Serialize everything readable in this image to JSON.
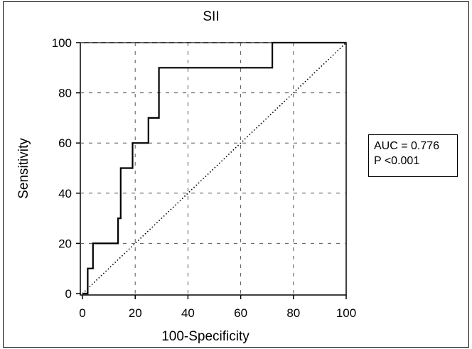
{
  "chart_data": {
    "type": "line",
    "title": "SII",
    "xlabel": "100-Specificity",
    "ylabel": "Sensitivity",
    "xlim": [
      0,
      100
    ],
    "ylim": [
      0,
      100
    ],
    "xticks": [
      0,
      20,
      40,
      60,
      80,
      100
    ],
    "yticks": [
      0,
      20,
      40,
      60,
      80,
      100
    ],
    "grid": true,
    "series": [
      {
        "style": "solid",
        "color": "#000000",
        "x": [
          0,
          2,
          2,
          4,
          4,
          13.5,
          13.5,
          14.5,
          14.5,
          19,
          19,
          25,
          25,
          29,
          29,
          72,
          72,
          100
        ],
        "y": [
          0,
          0,
          10,
          10,
          20,
          20,
          30,
          30,
          50,
          50,
          60,
          60,
          70,
          70,
          90,
          90,
          100,
          100
        ]
      },
      {
        "style": "dotted",
        "color": "#000000",
        "x": [
          0,
          100
        ],
        "y": [
          0,
          100
        ]
      }
    ],
    "annotations": {
      "auc": "AUC = 0.776",
      "p": "P <0.001"
    }
  }
}
